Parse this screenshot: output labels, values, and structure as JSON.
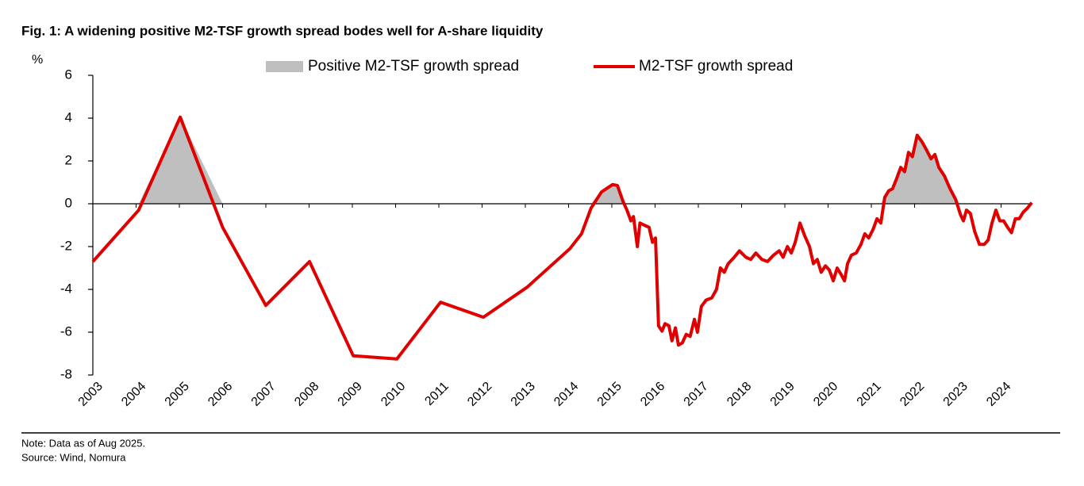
{
  "chart_data": {
    "type": "line",
    "title": "Fig. 1: A widening positive M2-TSF growth spread bodes well for A-share liquidity",
    "y_label": "%",
    "note": "Note: Data as of Aug 2025.",
    "source": "Source: Wind, Nomura",
    "x": [
      2003.0,
      2004.06,
      2005.02,
      2006.0,
      2007.0,
      2008.01,
      2009.02,
      2010.03,
      2011.04,
      2012.03,
      2013.04,
      2014.03,
      2014.3,
      2014.52,
      2014.76,
      2015.02,
      2015.13,
      2015.26,
      2015.35,
      2015.44,
      2015.5,
      2015.59,
      2015.65,
      2015.75,
      2015.86,
      2015.94,
      2016.01,
      2016.08,
      2016.16,
      2016.23,
      2016.32,
      2016.39,
      2016.47,
      2016.54,
      2016.63,
      2016.72,
      2016.81,
      2016.91,
      2016.98,
      2017.07,
      2017.18,
      2017.31,
      2017.42,
      2017.51,
      2017.6,
      2017.69,
      2017.83,
      2017.95,
      2018.1,
      2018.21,
      2018.33,
      2018.47,
      2018.6,
      2018.74,
      2018.87,
      2018.96,
      2019.06,
      2019.15,
      2019.24,
      2019.35,
      2019.46,
      2019.57,
      2019.66,
      2019.75,
      2019.84,
      2019.94,
      2020.03,
      2020.12,
      2020.21,
      2020.3,
      2020.38,
      2020.45,
      2020.54,
      2020.65,
      2020.76,
      2020.85,
      2020.94,
      2021.04,
      2021.13,
      2021.22,
      2021.31,
      2021.4,
      2021.49,
      2021.59,
      2021.68,
      2021.77,
      2021.86,
      2021.95,
      2022.06,
      2022.17,
      2022.28,
      2022.38,
      2022.47,
      2022.56,
      2022.69,
      2022.82,
      2022.95,
      2023.06,
      2023.13,
      2023.2,
      2023.29,
      2023.39,
      2023.5,
      2023.61,
      2023.7,
      2023.79,
      2023.88,
      2023.97,
      2024.06,
      2024.15,
      2024.24,
      2024.33,
      2024.42,
      2024.51,
      2024.61,
      2024.71
    ],
    "series": [
      {
        "name": "Positive M2-TSF growth spread",
        "type": "area",
        "color": "#bfbfbf",
        "values": [
          0,
          0,
          4.05,
          0,
          0,
          0,
          0,
          0,
          0,
          0,
          0,
          0,
          0,
          0,
          0.55,
          0.9,
          0.85,
          0.1,
          0,
          0,
          0,
          0,
          0,
          0,
          0,
          0,
          0,
          0,
          0,
          0,
          0,
          0,
          0,
          0,
          0,
          0,
          0,
          0,
          0,
          0,
          0,
          0,
          0,
          0,
          0,
          0,
          0,
          0,
          0,
          0,
          0,
          0,
          0,
          0,
          0,
          0,
          0,
          0,
          0,
          0,
          0,
          0,
          0,
          0,
          0,
          0,
          0,
          0,
          0,
          0,
          0,
          0,
          0,
          0,
          0,
          0,
          0,
          0,
          0,
          0,
          0.3,
          0.6,
          0.7,
          1.2,
          1.7,
          1.5,
          2.4,
          2.2,
          3.2,
          2.9,
          2.5,
          2.1,
          2.3,
          1.7,
          1.3,
          0.7,
          0.2,
          0,
          0,
          0,
          0,
          0,
          0,
          0,
          0,
          0,
          0,
          0,
          0,
          0,
          0,
          0,
          0,
          0,
          0,
          0.05
        ]
      },
      {
        "name": "M2-TSF growth spread",
        "type": "line",
        "color": "#e00000",
        "values": [
          -2.7,
          -0.3,
          4.05,
          -1.1,
          -4.75,
          -2.7,
          -7.1,
          -7.25,
          -4.6,
          -5.3,
          -3.9,
          -2.1,
          -1.4,
          -0.2,
          0.55,
          0.9,
          0.85,
          0.1,
          -0.3,
          -0.8,
          -0.6,
          -2.0,
          -0.9,
          -1.0,
          -1.1,
          -1.8,
          -1.6,
          -5.7,
          -5.95,
          -5.6,
          -5.7,
          -6.4,
          -5.8,
          -6.6,
          -6.5,
          -6.1,
          -6.2,
          -5.4,
          -6.0,
          -4.8,
          -4.5,
          -4.4,
          -4.0,
          -3.0,
          -3.2,
          -2.8,
          -2.5,
          -2.2,
          -2.5,
          -2.6,
          -2.3,
          -2.6,
          -2.7,
          -2.4,
          -2.2,
          -2.5,
          -2.0,
          -2.3,
          -1.8,
          -0.9,
          -1.5,
          -2.0,
          -2.8,
          -2.6,
          -3.2,
          -2.9,
          -3.1,
          -3.6,
          -3.0,
          -3.3,
          -3.6,
          -2.8,
          -2.4,
          -2.3,
          -1.9,
          -1.4,
          -1.6,
          -1.2,
          -0.7,
          -0.9,
          0.3,
          0.6,
          0.7,
          1.2,
          1.7,
          1.5,
          2.4,
          2.2,
          3.2,
          2.9,
          2.5,
          2.1,
          2.3,
          1.7,
          1.3,
          0.7,
          0.2,
          -0.5,
          -0.8,
          -0.3,
          -0.45,
          -1.3,
          -1.9,
          -1.9,
          -1.7,
          -0.9,
          -0.3,
          -0.8,
          -0.8,
          -1.1,
          -1.35,
          -0.7,
          -0.7,
          -0.4,
          -0.2,
          0.05
        ]
      }
    ],
    "xlim": [
      2003,
      2025
    ],
    "xticks": [
      2003,
      2004,
      2005,
      2006,
      2007,
      2008,
      2009,
      2010,
      2011,
      2012,
      2013,
      2014,
      2015,
      2016,
      2017,
      2018,
      2019,
      2020,
      2021,
      2022,
      2023,
      2024
    ],
    "ylim": [
      -8,
      6
    ],
    "yticks": [
      -8,
      -6,
      -4,
      -2,
      0,
      2,
      4,
      6
    ],
    "grid": false,
    "legend": "top"
  }
}
